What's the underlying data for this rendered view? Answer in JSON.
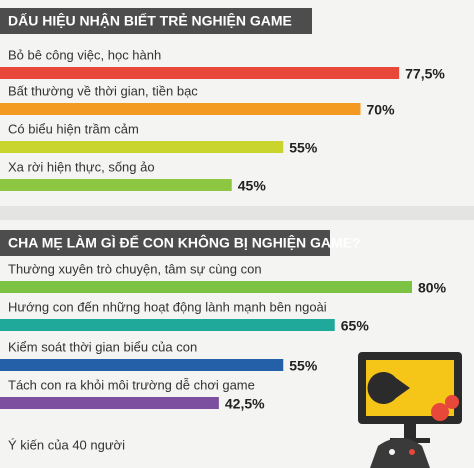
{
  "chart_data": [
    {
      "type": "bar",
      "orientation": "horizontal",
      "title": "DẤU HIỆU NHẬN BIẾT TRẺ NGHIỆN GAME",
      "categories": [
        "Bỏ bê công việc, học hành",
        "Bất thường về thời gian, tiền bạc",
        "Có biểu hiện trầm cảm",
        "Xa rời hiện thực, sống ảo"
      ],
      "values": [
        77.5,
        70,
        55,
        45
      ],
      "value_labels": [
        "77,5%",
        "70%",
        "55%",
        "45%"
      ],
      "colors": [
        "#e8483a",
        "#f29a22",
        "#c9d52c",
        "#8dc640"
      ]
    },
    {
      "type": "bar",
      "orientation": "horizontal",
      "title": "CHA MẸ LÀM GÌ ĐỂ CON KHÔNG BỊ NGHIỆN GAME?",
      "categories": [
        "Thường xuyên trò chuyện, tâm sự cùng con",
        "Hướng con đến những hoạt động lành mạnh bên ngoài",
        "Kiểm soát thời gian biểu của con",
        "Tách con ra khỏi môi trường dễ chơi game"
      ],
      "values": [
        80,
        65,
        55,
        42.5
      ],
      "value_labels": [
        "80%",
        "65%",
        "55%",
        "42,5%"
      ],
      "colors": [
        "#7cc243",
        "#1fa99b",
        "#2360a8",
        "#7c4f9f"
      ]
    }
  ],
  "footnote": "Ý kiến của 40 người"
}
